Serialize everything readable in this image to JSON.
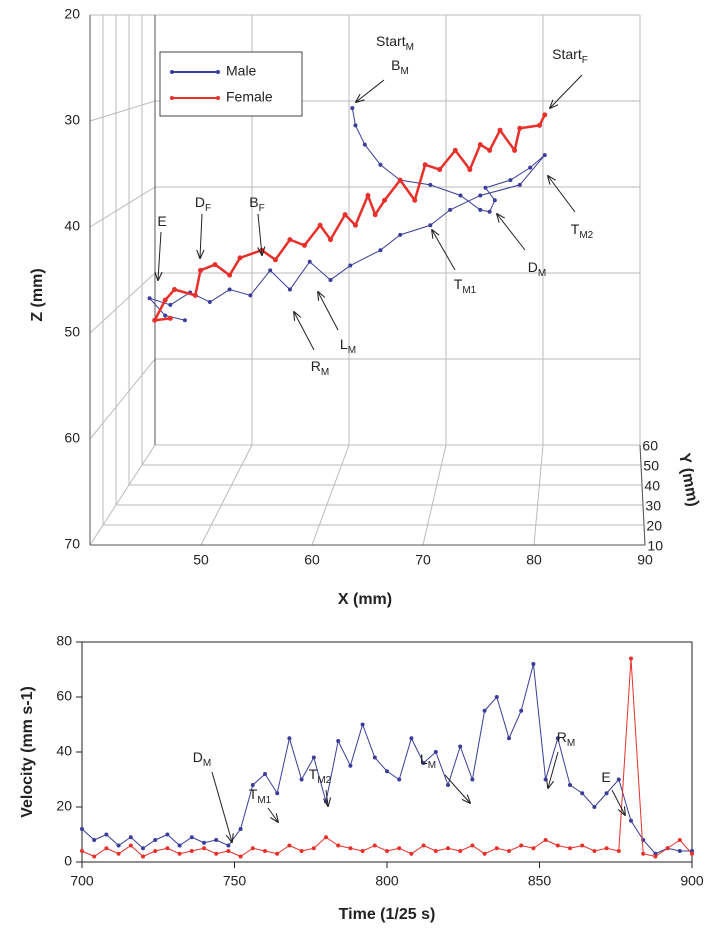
{
  "chart_data": [
    {
      "type": "line3d",
      "xlabel": "X (mm)",
      "ylabel": "Y (mm)",
      "zlabel": "Z (mm)",
      "xlim": [
        40,
        90
      ],
      "xticks": [
        50,
        60,
        70,
        80,
        90
      ],
      "ylim": [
        10,
        60
      ],
      "yticks": [
        10,
        20,
        30,
        40,
        50,
        60
      ],
      "zlim": [
        20,
        70
      ],
      "zticks": [
        20,
        30,
        40,
        50,
        60,
        70
      ],
      "z_reversed": true,
      "grid": true,
      "legend": "upper left",
      "series": [
        {
          "name": "Male",
          "color": "#3a3d9a",
          "x": [
            62.1,
            62.4,
            63.3,
            64.8,
            66.7,
            69.6,
            72.5,
            74.4,
            75.3,
            75.8,
            74.9,
            77.3,
            79.2,
            80.6,
            78.2,
            74.4,
            71.5,
            69.6,
            66.7,
            64.8,
            61.9,
            60.0,
            58.0,
            56.1,
            54.2,
            52.3,
            50.3,
            48.4,
            46.5,
            44.6,
            42.6,
            44.1,
            46.0
          ],
          "y": [
            35,
            35,
            35,
            35,
            35,
            35,
            35,
            35,
            35,
            35,
            35,
            35,
            35,
            35,
            35,
            35,
            35,
            35,
            35,
            35,
            35,
            35,
            35,
            35,
            35,
            35,
            35,
            35,
            35,
            35,
            35,
            35,
            35
          ],
          "z": [
            29.7,
            31.5,
            33.5,
            35.6,
            37.2,
            37.7,
            38.8,
            40.3,
            40.5,
            39.3,
            38.0,
            37.2,
            35.9,
            34.6,
            37.7,
            38.8,
            40.3,
            41.9,
            42.9,
            44.5,
            46.1,
            47.6,
            45.7,
            48.6,
            46.6,
            49.2,
            48.6,
            49.9,
            48.9,
            50.2,
            49.5,
            51.3,
            51.8
          ]
        },
        {
          "name": "Female",
          "color": "#e8302a",
          "x": [
            80.6,
            80.1,
            78.2,
            77.7,
            76.3,
            75.3,
            74.4,
            73.4,
            72.0,
            70.5,
            69.1,
            68.1,
            66.7,
            65.2,
            64.3,
            63.6,
            62.4,
            61.4,
            60.0,
            59.0,
            57.5,
            56.1,
            54.7,
            53.4,
            51.3,
            50.3,
            48.9,
            47.5,
            47.0,
            45.0,
            44.1,
            43.1,
            44.6
          ],
          "y": [
            35,
            35,
            35,
            35,
            35,
            35,
            35,
            35,
            35,
            35,
            35,
            35,
            35,
            35,
            35,
            35,
            35,
            35,
            35,
            35,
            35,
            35,
            35,
            35,
            35,
            35,
            35,
            35,
            35,
            35,
            35,
            35,
            35
          ],
          "z": [
            30.4,
            31.5,
            31.8,
            34.1,
            32.0,
            34.1,
            33.5,
            36.1,
            34.1,
            36.1,
            35.6,
            39.3,
            37.2,
            39.3,
            40.8,
            38.8,
            41.9,
            40.8,
            43.4,
            41.9,
            44.0,
            43.4,
            45.5,
            44.5,
            45.3,
            47.1,
            46.0,
            46.6,
            49.2,
            48.6,
            49.7,
            51.8,
            51.6
          ]
        }
      ],
      "annotations": [
        {
          "text": "Start",
          "sub": "M"
        },
        {
          "text": "B",
          "sub": "M"
        },
        {
          "text": "Start",
          "sub": "F"
        },
        {
          "text": "D",
          "sub": "F"
        },
        {
          "text": "B",
          "sub": "F"
        },
        {
          "text": "E"
        },
        {
          "text": "R",
          "sub": "M"
        },
        {
          "text": "L",
          "sub": "M"
        },
        {
          "text": "T",
          "sub": "M1"
        },
        {
          "text": "D",
          "sub": "M"
        },
        {
          "text": "T",
          "sub": "M2"
        }
      ]
    },
    {
      "type": "line",
      "xlabel": "Time (1/25 s)",
      "ylabel": "Velocity (mm s-1)",
      "xlim": [
        700,
        900
      ],
      "xticks": [
        700,
        750,
        800,
        850,
        900
      ],
      "ylim": [
        0,
        80
      ],
      "yticks": [
        0,
        20,
        40,
        60,
        80
      ],
      "x": [
        700,
        704,
        708,
        712,
        716,
        720,
        724,
        728,
        732,
        736,
        740,
        744,
        748,
        752,
        756,
        760,
        764,
        768,
        772,
        776,
        780,
        784,
        788,
        792,
        796,
        800,
        804,
        808,
        812,
        816,
        820,
        824,
        828,
        832,
        836,
        840,
        844,
        848,
        852,
        856,
        860,
        864,
        868,
        872,
        876,
        880,
        884,
        888,
        892,
        896,
        900
      ],
      "series": [
        {
          "name": "Male",
          "color": "#3a3d9a",
          "values": [
            12,
            8,
            10,
            6,
            9,
            5,
            8,
            10,
            6,
            9,
            7,
            8,
            6,
            12,
            28,
            32,
            25,
            45,
            30,
            38,
            22,
            44,
            35,
            50,
            38,
            33,
            30,
            45,
            36,
            40,
            28,
            42,
            30,
            55,
            60,
            45,
            55,
            72,
            30,
            45,
            28,
            25,
            20,
            25,
            30,
            15,
            8,
            3,
            5,
            4,
            4
          ]
        },
        {
          "name": "Female",
          "color": "#e8302a",
          "values": [
            4,
            2,
            5,
            3,
            6,
            2,
            4,
            5,
            3,
            4,
            5,
            3,
            4,
            2,
            5,
            4,
            3,
            6,
            4,
            5,
            9,
            6,
            5,
            4,
            6,
            4,
            5,
            3,
            6,
            4,
            5,
            4,
            6,
            3,
            5,
            4,
            6,
            5,
            8,
            6,
            5,
            6,
            4,
            5,
            4,
            74,
            3,
            2,
            5,
            8,
            3
          ]
        }
      ],
      "annotations": [
        {
          "text": "D",
          "sub": "M"
        },
        {
          "text": "T",
          "sub": "M1"
        },
        {
          "text": "T",
          "sub": "M2"
        },
        {
          "text": "L",
          "sub": "M"
        },
        {
          "text": "R",
          "sub": "M"
        },
        {
          "text": "E"
        }
      ]
    }
  ]
}
